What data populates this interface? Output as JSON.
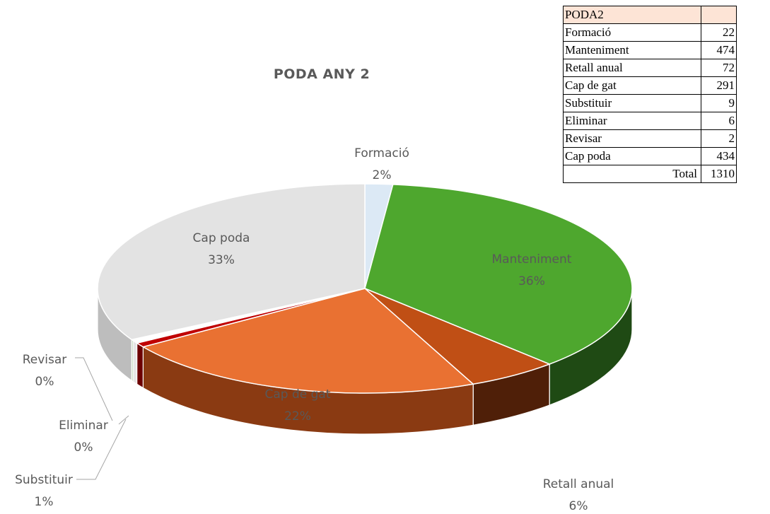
{
  "chart_data": {
    "type": "pie",
    "title": "PODA ANY 2",
    "slices": [
      {
        "name": "Formació",
        "value": 22,
        "percent_label": "2%",
        "color": "#dce9f5",
        "side": "#b8c9da"
      },
      {
        "name": "Manteniment",
        "value": 474,
        "percent_label": "36%",
        "color": "#4ea72e",
        "side": "#1f4a14"
      },
      {
        "name": "Retall anual",
        "value": 72,
        "percent_label": "6%",
        "color": "#c04f15",
        "side": "#4f1f08"
      },
      {
        "name": "Cap de gat",
        "value": 291,
        "percent_label": "22%",
        "color": "#e97132",
        "side": "#8a3a12"
      },
      {
        "name": "Substituir",
        "value": 9,
        "percent_label": "1%",
        "color": "#c00000",
        "side": "#6d0000"
      },
      {
        "name": "Eliminar",
        "value": 6,
        "percent_label": "0%",
        "color": "#ffffff",
        "side": "#e6e6e6"
      },
      {
        "name": "Revisar",
        "value": 2,
        "percent_label": "0%",
        "color": "#b4e3a4",
        "side": "#8cb57d"
      },
      {
        "name": "Cap poda",
        "value": 434,
        "percent_label": "33%",
        "color": "#e3e3e3",
        "side": "#bdbdbd"
      }
    ]
  },
  "table": {
    "header": "PODA2",
    "rows": [
      {
        "name": "Formació",
        "value": "22"
      },
      {
        "name": "Manteniment",
        "value": "474"
      },
      {
        "name": "Retall anual",
        "value": "72"
      },
      {
        "name": "Cap de gat",
        "value": "291"
      },
      {
        "name": "Substituir",
        "value": "9"
      },
      {
        "name": "Eliminar",
        "value": "6"
      },
      {
        "name": "Revisar",
        "value": "2"
      },
      {
        "name": "Cap poda",
        "value": "434"
      }
    ],
    "total_label": "Total",
    "total_value": "1310"
  }
}
